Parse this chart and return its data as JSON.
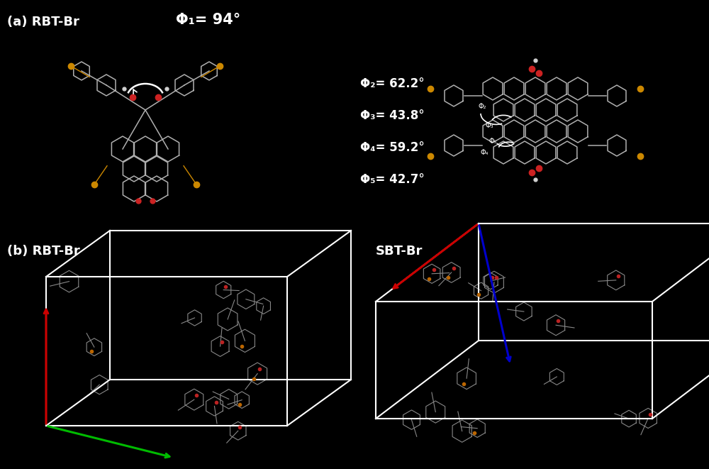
{
  "background_color": "#000000",
  "fig_width": 10.0,
  "fig_height": 6.61,
  "label_a": "(a) RBT-Br",
  "label_b": "(b) RBT-Br",
  "label_sbt": "SBT-Br",
  "phi1_text": "Φ₁= 94°",
  "phi2_text": "Φ₂= 62.2°",
  "phi3_text": "Φ₃= 43.8°",
  "phi4_text": "Φ₄= 59.2°",
  "phi5_text": "Φ₅= 42.7°",
  "text_color": "#ffffff",
  "font_size_label": 13,
  "font_size_phi": 12,
  "mol_gray": "#b0b0b0",
  "mol_red": "#cc2222",
  "mol_orange": "#cc8800",
  "box_color": "#ffffff",
  "axis_red": "#cc0000",
  "axis_green": "#00bb00",
  "axis_blue": "#0000cc"
}
